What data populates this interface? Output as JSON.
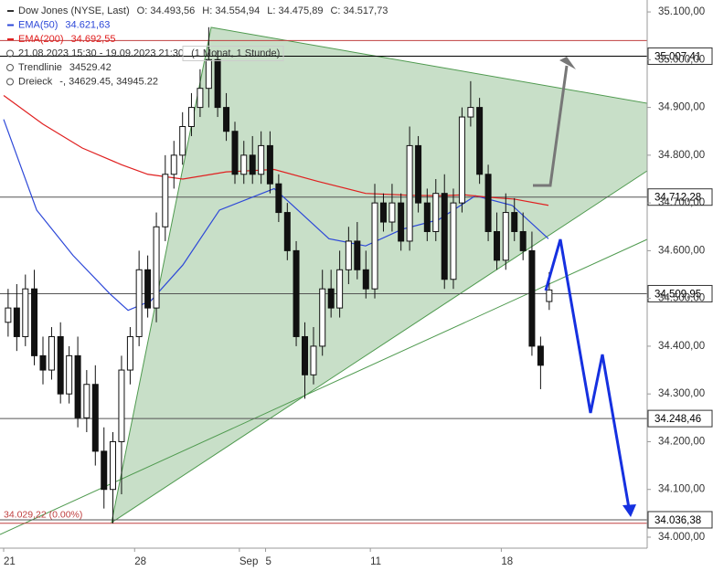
{
  "chart_data": {
    "type": "candlestick",
    "title": "Dow Jones (NYSE, Last)",
    "ohlc_text": [
      "O: 34.493,56",
      "H: 34.554,94",
      "L: 34.475,89",
      "C: 34.517,73"
    ],
    "legend": [
      {
        "name": "EMA(50)",
        "value": "34.621,63",
        "color": "#2d48d8"
      },
      {
        "name": "EMA(200)",
        "value": "34.692,55",
        "color": "#e02020"
      }
    ],
    "info": [
      "21.08.2023 15:30 - 19.09.2023 21:30",
      "(1 Monat, 1 Stunde)"
    ],
    "drawings": [
      {
        "name": "Trendlinie",
        "value": "34529.42"
      },
      {
        "name": "Dreieck",
        "value": "-, 34629.45, 34945.22"
      }
    ],
    "open": [
      34450,
      34480,
      34420,
      34520,
      34380,
      34350,
      34420,
      34300,
      34380,
      34250,
      34320,
      34180,
      34100,
      34200,
      34350,
      34420,
      34560,
      34480,
      34650,
      34760,
      34800,
      34860,
      34900,
      34940,
      35000,
      34900,
      34850,
      34760,
      34800,
      34760,
      34820,
      34740,
      34680,
      34600,
      34420,
      34340,
      34400,
      34520,
      34480,
      34560,
      34620,
      34560,
      34520,
      34700,
      34660,
      34700,
      34620,
      34820,
      34700,
      34640,
      34720,
      34540,
      34700,
      34880,
      34900,
      34760,
      34640,
      34580,
      34680,
      34640,
      34600,
      34400,
      34493.56
    ],
    "high": [
      34520,
      34530,
      34550,
      34560,
      34420,
      34440,
      34450,
      34400,
      34420,
      34350,
      34360,
      34230,
      34220,
      34380,
      34440,
      34600,
      34590,
      34680,
      34800,
      34830,
      34890,
      34930,
      34980,
      35068,
      35020,
      34930,
      34870,
      34830,
      34840,
      34850,
      34850,
      34760,
      34700,
      34620,
      34450,
      34440,
      34560,
      34560,
      34600,
      34650,
      34660,
      34600,
      34740,
      34720,
      34740,
      34720,
      34860,
      34840,
      34730,
      34750,
      34760,
      34730,
      34900,
      34955,
      34920,
      34780,
      34680,
      34720,
      34710,
      34680,
      34640,
      34420,
      34554.94
    ],
    "low": [
      34420,
      34390,
      34400,
      34360,
      34320,
      34330,
      34280,
      34280,
      34230,
      34220,
      34150,
      34060,
      34029,
      34090,
      34320,
      34400,
      34460,
      34450,
      34620,
      34730,
      34780,
      34840,
      34880,
      34900,
      34880,
      34830,
      34740,
      34740,
      34740,
      34740,
      34720,
      34660,
      34580,
      34400,
      34290,
      34320,
      34380,
      34460,
      34460,
      34530,
      34540,
      34500,
      34500,
      34640,
      34640,
      34600,
      34600,
      34680,
      34620,
      34620,
      34520,
      34520,
      34680,
      34860,
      34740,
      34620,
      34560,
      34560,
      34620,
      34580,
      34380,
      34310,
      34475.89
    ],
    "close": [
      34480,
      34420,
      34520,
      34380,
      34350,
      34420,
      34300,
      34380,
      34250,
      34320,
      34180,
      34100,
      34200,
      34350,
      34420,
      34560,
      34480,
      34650,
      34760,
      34800,
      34860,
      34900,
      34940,
      35000,
      34900,
      34850,
      34760,
      34800,
      34760,
      34820,
      34740,
      34680,
      34600,
      34420,
      34340,
      34400,
      34520,
      34480,
      34560,
      34620,
      34560,
      34520,
      34700,
      34660,
      34700,
      34620,
      34820,
      34700,
      34640,
      34720,
      34540,
      34700,
      34880,
      34900,
      34760,
      34640,
      34580,
      34680,
      34640,
      34600,
      34400,
      34360,
      34517.73
    ],
    "x": [
      0.17,
      0.5,
      0.83,
      1.17,
      1.5,
      1.83,
      2.17,
      2.5,
      2.83,
      3.17,
      3.5,
      3.83,
      4.17,
      4.5,
      4.83,
      5.17,
      5.5,
      5.83,
      6.17,
      6.5,
      6.83,
      7.17,
      7.5,
      7.83,
      8.17,
      8.5,
      8.83,
      9.17,
      9.5,
      9.83,
      10.17,
      10.5,
      10.83,
      11.17,
      11.5,
      11.83,
      12.17,
      12.5,
      12.83,
      13.17,
      13.5,
      13.83,
      14.17,
      14.5,
      14.83,
      15.17,
      15.5,
      15.83,
      16.17,
      16.5,
      16.83,
      17.17,
      17.5,
      17.83,
      18.17,
      18.5,
      18.83,
      19.17,
      19.5,
      19.83,
      20.17,
      20.5,
      20.83
    ],
    "series": [
      {
        "name": "EMA(50)",
        "color": "#2d48d8",
        "x": [
          0,
          1.26,
          2.65,
          4.05,
          4.75,
          5.62,
          6.84,
          8.24,
          10.33,
          11.03,
          12.42,
          13.82,
          15.22,
          16.61,
          18.01,
          19.41,
          20.8
        ],
        "values": [
          34875,
          34685,
          34590,
          34510,
          34475,
          34495,
          34570,
          34685,
          34730,
          34695,
          34625,
          34610,
          34645,
          34665,
          34715,
          34695,
          34625
        ]
      },
      {
        "name": "EMA(200)",
        "color": "#e02020",
        "x": [
          0,
          1.5,
          3,
          4.5,
          5.5,
          6.84,
          8.5,
          10.33,
          12,
          13.82,
          15.5,
          16.61,
          17.6,
          18.5,
          19.5,
          20.8
        ],
        "values": [
          34925,
          34865,
          34815,
          34780,
          34760,
          34750,
          34765,
          34770,
          34745,
          34720,
          34716,
          34715,
          34717,
          34712,
          34708,
          34695
        ]
      }
    ],
    "levels": [
      {
        "value": 35040,
        "color": "#c04040"
      },
      {
        "value": 35007.41,
        "label": "35.007,41",
        "color": "#000000"
      },
      {
        "value": 34712.28,
        "label": "34.712,28",
        "color": "#555555"
      },
      {
        "value": 34509.95,
        "label": "34.509,95",
        "color": "#555555"
      },
      {
        "value": 34248.46,
        "label": "34.248,46",
        "color": "#555555"
      },
      {
        "value": 34036.38,
        "label": "34.036,38",
        "color": "#555555"
      },
      {
        "value": 34029.22,
        "label": "34.029,22 (0.00%)",
        "color": "#c04040"
      }
    ],
    "ylim": [
      33977,
      35125
    ],
    "yticks": [
      {
        "value": 35100,
        "label": "35.100,00"
      },
      {
        "value": 35000,
        "label": "35.000,00"
      },
      {
        "value": 34900,
        "label": "34.900,00"
      },
      {
        "value": 34800,
        "label": "34.800,00"
      },
      {
        "value": 34700,
        "label": "34.700,00"
      },
      {
        "value": 34600,
        "label": "34.600,00"
      },
      {
        "value": 34500,
        "label": "34.500,00"
      },
      {
        "value": 34400,
        "label": "34.400,00"
      },
      {
        "value": 34300,
        "label": "34.300,00"
      },
      {
        "value": 34200,
        "label": "34.200,00"
      },
      {
        "value": 34100,
        "label": "34.100,00"
      },
      {
        "value": 34000,
        "label": "34.000,00"
      }
    ],
    "xlim": [
      -0.14,
      24.57
    ],
    "xticks": [
      {
        "value": 0,
        "label": "21"
      },
      {
        "value": 5,
        "label": "28"
      },
      {
        "value": 9,
        "label": "Sep"
      },
      {
        "value": 10,
        "label": "5"
      },
      {
        "value": 14,
        "label": "11"
      },
      {
        "value": 19,
        "label": "18"
      }
    ]
  }
}
